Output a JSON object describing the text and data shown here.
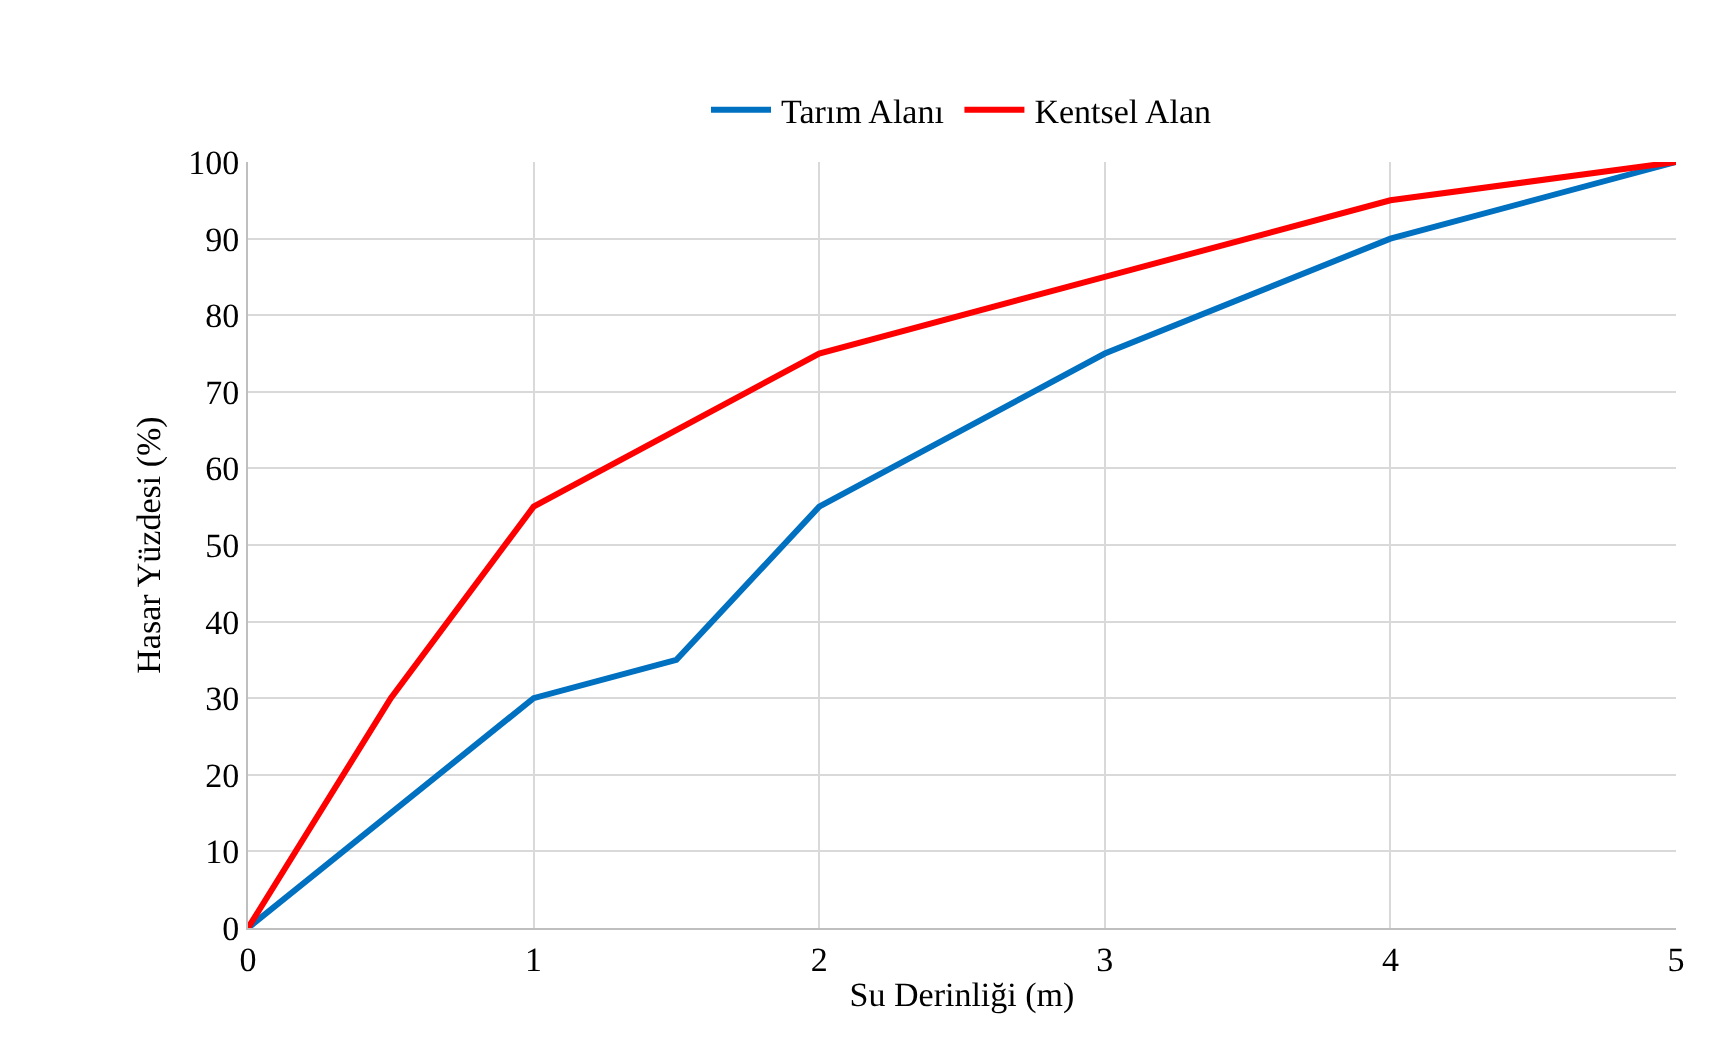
{
  "chart_data": {
    "type": "line",
    "xlabel": "Su Derinliği (m)",
    "ylabel": "Hasar Yüzdesi (%)",
    "xlim": [
      0,
      5
    ],
    "xticks": [
      0,
      1,
      2,
      3,
      4,
      5
    ],
    "ylim": [
      0,
      100
    ],
    "yticks": [
      0,
      10,
      20,
      30,
      40,
      50,
      60,
      70,
      80,
      90,
      100
    ],
    "grid": true,
    "legend": "top",
    "marker": "none",
    "line_style": "solid",
    "series": [
      {
        "name": "Tarım Alanı",
        "color": "#0070c0",
        "x": [
          0,
          1,
          1.5,
          2,
          3,
          4,
          5
        ],
        "values": [
          0,
          30,
          35,
          55,
          75,
          90,
          100
        ]
      },
      {
        "name": "Kentsel Alan",
        "color": "#ff0000",
        "x": [
          0,
          0.5,
          1,
          2,
          3,
          4,
          5
        ],
        "values": [
          0,
          30,
          55,
          75,
          85,
          95,
          100
        ]
      }
    ]
  }
}
